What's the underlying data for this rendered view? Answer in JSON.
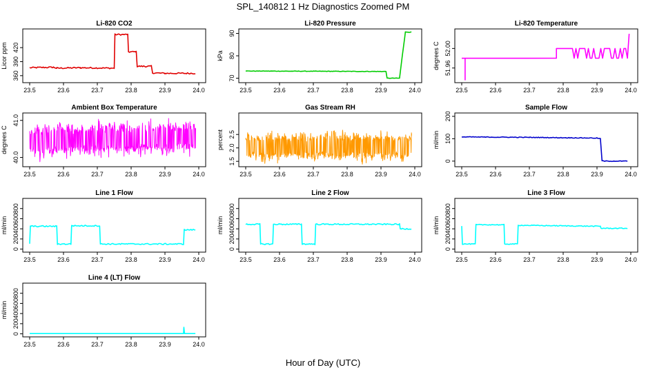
{
  "figure": {
    "title": "SPL_140812  1 Hz Diagnostics Zoomed PM",
    "xlabel": "Hour of Day (UTC)"
  },
  "chart_data": [
    {
      "type": "line",
      "title": "Li-820 CO2",
      "ylabel": "Licor ppm",
      "xlim": [
        23.5,
        24.0
      ],
      "ylim": [
        345,
        460
      ],
      "xticks": [
        "23.5",
        "23.6",
        "23.7",
        "23.8",
        "23.9",
        "24.0"
      ],
      "yticks": [
        {
          "value": 360,
          "label": "360"
        },
        {
          "value": 390,
          "label": "390"
        },
        {
          "value": 420,
          "label": "420"
        }
      ],
      "color": "#e00000",
      "style": "step",
      "noise": 1.5,
      "series": [
        [
          23.5,
          377
        ],
        [
          23.57,
          378
        ],
        [
          23.58,
          376
        ],
        [
          23.65,
          377
        ],
        [
          23.75,
          376
        ],
        [
          23.752,
          448
        ],
        [
          23.79,
          448
        ],
        [
          23.792,
          411
        ],
        [
          23.815,
          411
        ],
        [
          23.818,
          380
        ],
        [
          23.84,
          380
        ],
        [
          23.86,
          380
        ],
        [
          23.863,
          366
        ],
        [
          23.9,
          365
        ],
        [
          23.96,
          365
        ],
        [
          23.99,
          365
        ]
      ]
    },
    {
      "type": "line",
      "title": "Li-820 Pressure",
      "ylabel": "kPa",
      "xlim": [
        23.5,
        24.0
      ],
      "ylim": [
        68,
        92
      ],
      "xticks": [
        "23.5",
        "23.6",
        "23.7",
        "23.8",
        "23.9",
        "24.0"
      ],
      "yticks": [
        {
          "value": 70,
          "label": "70"
        },
        {
          "value": 80,
          "label": "80"
        },
        {
          "value": 90,
          "label": "90"
        }
      ],
      "color": "#00cc00",
      "style": "step",
      "noise": 0.1,
      "series": [
        [
          23.5,
          73.2
        ],
        [
          23.9,
          73
        ],
        [
          23.915,
          73
        ],
        [
          23.918,
          70
        ],
        [
          23.955,
          70
        ],
        [
          23.963,
          80
        ],
        [
          23.97,
          88
        ],
        [
          23.972,
          90.6
        ],
        [
          23.99,
          90.6
        ]
      ]
    },
    {
      "type": "line",
      "title": "Li-820 Temperature",
      "ylabel": "degrees C",
      "xlim": [
        23.5,
        24.0
      ],
      "ylim": [
        51.93,
        52.04
      ],
      "xticks": [
        "23.5",
        "23.6",
        "23.7",
        "23.8",
        "23.9",
        "24.0"
      ],
      "yticks": [
        {
          "value": 51.96,
          "label": "51.96"
        },
        {
          "value": 52.0,
          "label": "52.00"
        }
      ],
      "color": "#ff00ff",
      "style": "spiky",
      "noise": 0,
      "series": [
        [
          23.5,
          51.98
        ],
        [
          23.78,
          51.98
        ],
        [
          23.78,
          52.0
        ],
        [
          23.99,
          52.0
        ],
        [
          23.995,
          52.03
        ]
      ]
    },
    {
      "type": "line",
      "title": "Ambient Box Temperature",
      "ylabel": "degrees C",
      "xlim": [
        23.5,
        24.0
      ],
      "ylim": [
        39.75,
        41.2
      ],
      "xticks": [
        "23.5",
        "23.6",
        "23.7",
        "23.8",
        "23.9",
        "24.0"
      ],
      "yticks": [
        {
          "value": 40.0,
          "label": "40.0"
        },
        {
          "value": 41.0,
          "label": "41.0"
        }
      ],
      "color": "#ff00ff",
      "style": "band",
      "noise": 0.35,
      "series": [
        [
          23.5,
          40.45
        ],
        [
          23.99,
          40.55
        ]
      ]
    },
    {
      "type": "line",
      "title": "Gas Stream RH",
      "ylabel": "percent",
      "xlim": [
        23.5,
        24.0
      ],
      "ylim": [
        1.3,
        3.3
      ],
      "xticks": [
        "23.5",
        "23.6",
        "23.7",
        "23.8",
        "23.9",
        "24.0"
      ],
      "yticks": [
        {
          "value": 1.5,
          "label": "1.5"
        },
        {
          "value": 2.0,
          "label": "2.0"
        },
        {
          "value": 2.5,
          "label": "2.5"
        }
      ],
      "color": "#ff9900",
      "style": "band",
      "noise": 0.4,
      "series": [
        [
          23.5,
          2.05
        ],
        [
          23.99,
          2.05
        ]
      ]
    },
    {
      "type": "line",
      "title": "Sample Flow",
      "ylabel": "ml/min",
      "xlim": [
        23.5,
        24.0
      ],
      "ylim": [
        -25,
        215
      ],
      "xticks": [
        "23.5",
        "23.6",
        "23.7",
        "23.8",
        "23.9",
        "24.0"
      ],
      "yticks": [
        {
          "value": 0,
          "label": "0"
        },
        {
          "value": 100,
          "label": "100"
        },
        {
          "value": 200,
          "label": "200"
        }
      ],
      "color": "#0000cc",
      "style": "step",
      "noise": 1.5,
      "series": [
        [
          23.5,
          108
        ],
        [
          23.7,
          106
        ],
        [
          23.9,
          103
        ],
        [
          23.91,
          100
        ],
        [
          23.915,
          2
        ],
        [
          23.92,
          0
        ],
        [
          23.99,
          0
        ]
      ]
    },
    {
      "type": "line",
      "title": "Line 1 Flow",
      "ylabel": "ml/min",
      "xlim": [
        23.5,
        24.0
      ],
      "ylim": [
        -60,
        1000
      ],
      "xticks": [
        "23.5",
        "23.6",
        "23.7",
        "23.8",
        "23.9",
        "24.0"
      ],
      "yticks": [
        {
          "value": 0,
          "label": "0"
        },
        {
          "value": 200,
          "label": "200"
        },
        {
          "value": 400,
          "label": "400"
        },
        {
          "value": 600,
          "label": "600"
        },
        {
          "value": 800,
          "label": "800"
        }
      ],
      "color": "#00ffff",
      "style": "step",
      "noise": 12,
      "series": [
        [
          23.5,
          100
        ],
        [
          23.502,
          450
        ],
        [
          23.58,
          450
        ],
        [
          23.582,
          100
        ],
        [
          23.622,
          100
        ],
        [
          23.624,
          460
        ],
        [
          23.707,
          460
        ],
        [
          23.709,
          100
        ],
        [
          23.955,
          100
        ],
        [
          23.957,
          380
        ],
        [
          23.99,
          380
        ]
      ]
    },
    {
      "type": "line",
      "title": "Line 2 Flow",
      "ylabel": "ml/min",
      "xlim": [
        23.5,
        24.0
      ],
      "ylim": [
        -60,
        1000
      ],
      "xticks": [
        "23.5",
        "23.6",
        "23.7",
        "23.8",
        "23.9",
        "24.0"
      ],
      "yticks": [
        {
          "value": 0,
          "label": "0"
        },
        {
          "value": 200,
          "label": "200"
        },
        {
          "value": 400,
          "label": "400"
        },
        {
          "value": 600,
          "label": "600"
        },
        {
          "value": 800,
          "label": "800"
        }
      ],
      "color": "#00ffff",
      "style": "step",
      "noise": 12,
      "series": [
        [
          23.5,
          490
        ],
        [
          23.542,
          490
        ],
        [
          23.544,
          100
        ],
        [
          23.58,
          100
        ],
        [
          23.582,
          490
        ],
        [
          23.665,
          490
        ],
        [
          23.667,
          100
        ],
        [
          23.705,
          100
        ],
        [
          23.707,
          490
        ],
        [
          23.955,
          490
        ],
        [
          23.957,
          400
        ],
        [
          23.99,
          400
        ]
      ]
    },
    {
      "type": "line",
      "title": "Line 3 Flow",
      "ylabel": "ml/min",
      "xlim": [
        23.5,
        24.0
      ],
      "ylim": [
        -60,
        1000
      ],
      "xticks": [
        "23.5",
        "23.6",
        "23.7",
        "23.8",
        "23.9",
        "24.0"
      ],
      "yticks": [
        {
          "value": 0,
          "label": "0"
        },
        {
          "value": 200,
          "label": "200"
        },
        {
          "value": 400,
          "label": "400"
        },
        {
          "value": 600,
          "label": "600"
        },
        {
          "value": 800,
          "label": "800"
        }
      ],
      "color": "#00ffff",
      "style": "step",
      "noise": 8,
      "series": [
        [
          23.5,
          460
        ],
        [
          23.502,
          100
        ],
        [
          23.54,
          100
        ],
        [
          23.542,
          480
        ],
        [
          23.625,
          480
        ],
        [
          23.627,
          100
        ],
        [
          23.665,
          100
        ],
        [
          23.667,
          470
        ],
        [
          23.91,
          450
        ],
        [
          23.912,
          410
        ],
        [
          23.99,
          410
        ]
      ]
    },
    {
      "type": "line",
      "title": "Line 4 (LT) Flow",
      "ylabel": "ml/min",
      "xlim": [
        23.5,
        24.0
      ],
      "ylim": [
        -60,
        1000
      ],
      "xticks": [
        "23.5",
        "23.6",
        "23.7",
        "23.8",
        "23.9",
        "24.0"
      ],
      "yticks": [
        {
          "value": 0,
          "label": "0"
        },
        {
          "value": 200,
          "label": "200"
        },
        {
          "value": 400,
          "label": "400"
        },
        {
          "value": 600,
          "label": "600"
        },
        {
          "value": 800,
          "label": "800"
        }
      ],
      "color": "#00ffff",
      "style": "step",
      "noise": 0,
      "series": [
        [
          23.5,
          5
        ],
        [
          23.955,
          5
        ],
        [
          23.956,
          130
        ],
        [
          23.958,
          5
        ],
        [
          23.99,
          5
        ]
      ]
    }
  ]
}
